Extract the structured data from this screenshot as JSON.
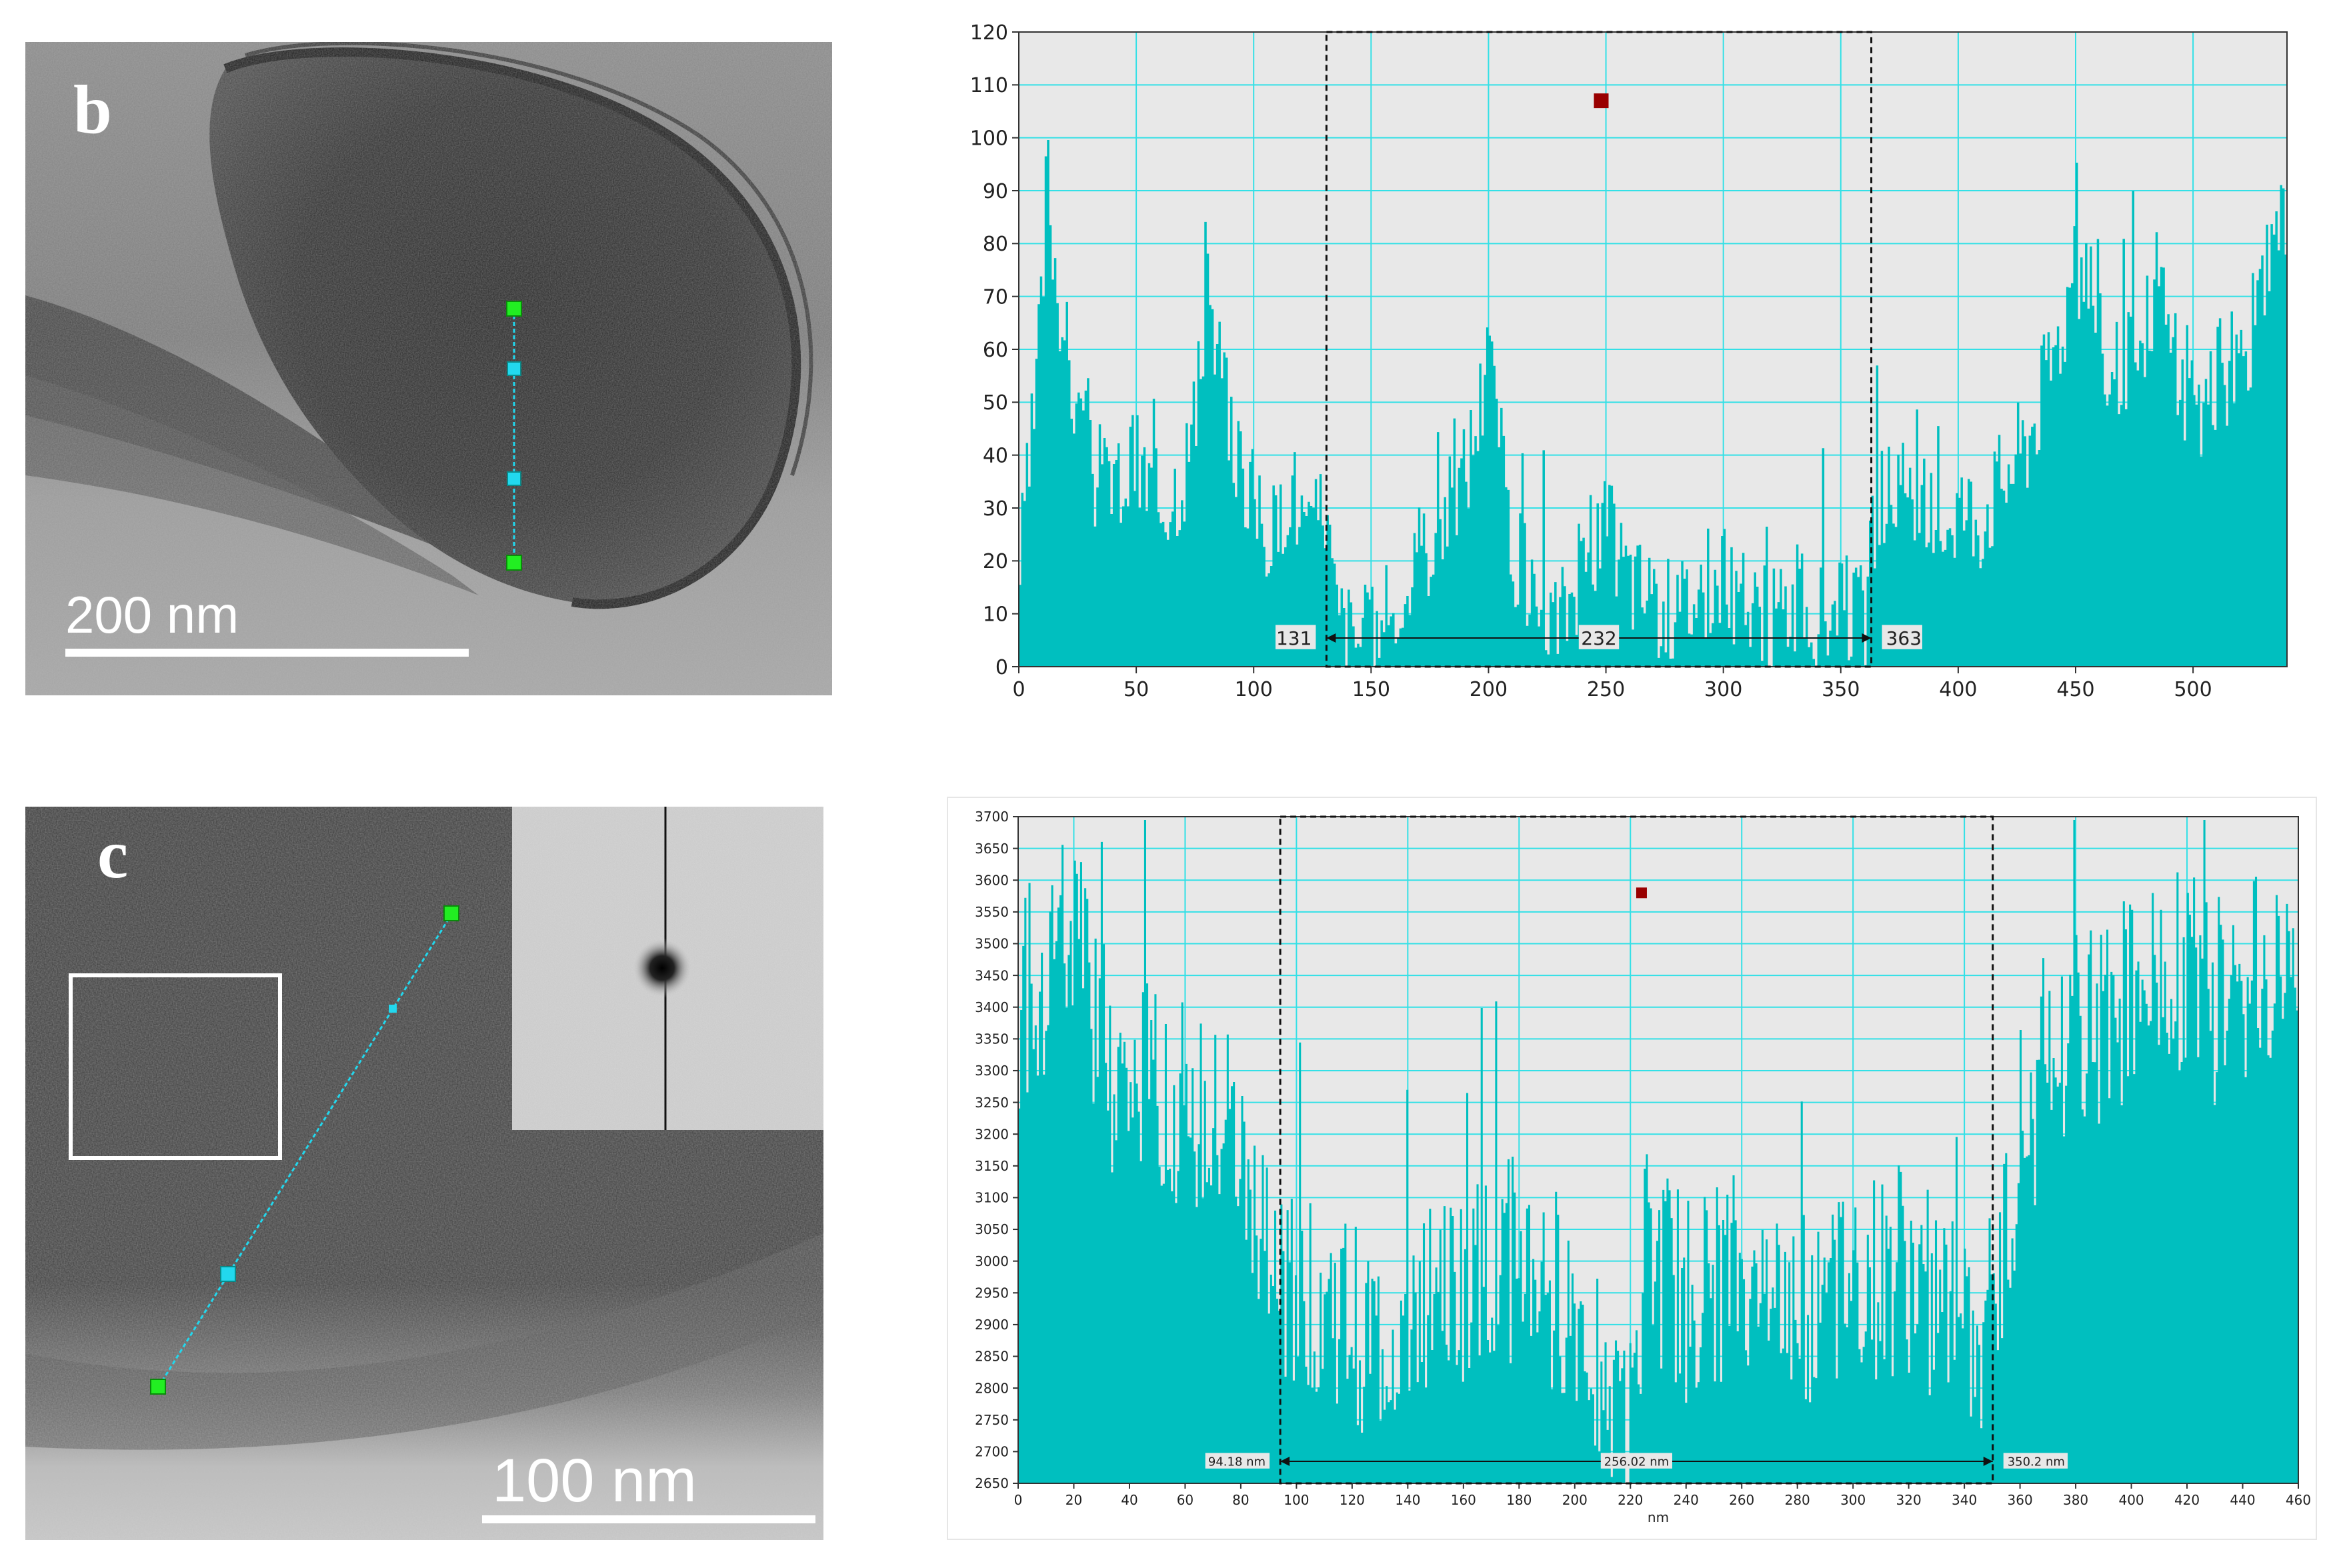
{
  "panels": {
    "b": {
      "letter": "b",
      "scale_label": "200 nm"
    },
    "c": {
      "letter": "c",
      "scale_label": "100 nm"
    }
  },
  "colors": {
    "fill": "#00bfbf",
    "grid": "#33e0e6",
    "bg": "#e8e8e8",
    "marker": "#990000",
    "node_end": "#22ee22",
    "node_mid": "#22d8ee"
  },
  "chart_data": [
    {
      "type": "area",
      "xlim": [
        0,
        540
      ],
      "ylim": [
        0,
        120
      ],
      "xticks": [
        0,
        50,
        100,
        150,
        200,
        250,
        300,
        350,
        400,
        450,
        500
      ],
      "yticks": [
        0,
        10,
        20,
        30,
        40,
        50,
        60,
        70,
        80,
        90,
        100,
        110,
        120
      ],
      "selection": {
        "start": 131,
        "end": 363,
        "start_label": "131",
        "width_label": "232",
        "end_label": "363"
      },
      "marker": {
        "x": 248,
        "y": 107
      },
      "series": [
        {
          "x": [
            0,
            5,
            10,
            12,
            15,
            20,
            25,
            30,
            40,
            50,
            60,
            70,
            78,
            80,
            82,
            85,
            90,
            95,
            100,
            105,
            110,
            115,
            120,
            125,
            130,
            135,
            140,
            150,
            160,
            170,
            180,
            190,
            195,
            200,
            205,
            210,
            220,
            230,
            240,
            250,
            260,
            270,
            280,
            290,
            300,
            310,
            320,
            330,
            340,
            350,
            360,
            365,
            370,
            380,
            390,
            400,
            410,
            420,
            430,
            440,
            450,
            455,
            460,
            470,
            480,
            485,
            490,
            500,
            510,
            520,
            530,
            538
          ],
          "values": [
            18,
            40,
            70,
            97,
            80,
            62,
            48,
            38,
            35,
            40,
            32,
            38,
            55,
            91,
            62,
            58,
            45,
            40,
            32,
            28,
            25,
            38,
            30,
            22,
            35,
            12,
            8,
            6,
            12,
            20,
            30,
            38,
            48,
            60,
            42,
            25,
            12,
            10,
            20,
            28,
            18,
            14,
            12,
            16,
            18,
            12,
            10,
            14,
            10,
            12,
            10,
            30,
            35,
            30,
            28,
            32,
            30,
            38,
            45,
            60,
            75,
            80,
            62,
            55,
            65,
            78,
            62,
            48,
            55,
            60,
            70,
            85
          ]
        }
      ]
    },
    {
      "type": "area",
      "xlim": [
        0,
        460
      ],
      "ylim": [
        2650,
        3700
      ],
      "xlabel": "nm",
      "xticks": [
        0,
        20,
        40,
        60,
        80,
        100,
        120,
        140,
        160,
        180,
        200,
        220,
        240,
        260,
        280,
        300,
        320,
        340,
        360,
        380,
        400,
        420,
        440,
        460
      ],
      "yticks": [
        2650,
        2700,
        2750,
        2800,
        2850,
        2900,
        2950,
        3000,
        3050,
        3100,
        3150,
        3200,
        3250,
        3300,
        3350,
        3400,
        3450,
        3500,
        3550,
        3600,
        3650,
        3700
      ],
      "selection": {
        "start": 94.18,
        "end": 350.2,
        "start_label": "94.18 nm",
        "width_label": "256.02 nm",
        "end_label": "350.2 nm"
      },
      "marker": {
        "x": 224,
        "y": 3580
      },
      "series": [
        {
          "x": [
            0,
            10,
            20,
            30,
            40,
            50,
            60,
            70,
            75,
            80,
            85,
            90,
            95,
            100,
            110,
            120,
            130,
            140,
            150,
            160,
            170,
            180,
            190,
            200,
            210,
            215,
            220,
            225,
            230,
            240,
            250,
            260,
            270,
            280,
            290,
            300,
            310,
            320,
            330,
            340,
            345,
            350,
            360,
            370,
            380,
            390,
            400,
            410,
            420,
            430,
            440,
            450,
            460
          ],
          "values": [
            3420,
            3480,
            3520,
            3360,
            3260,
            3310,
            3260,
            3200,
            3260,
            3150,
            3050,
            3000,
            2960,
            2980,
            2960,
            2920,
            2880,
            2920,
            2960,
            2980,
            3000,
            3030,
            2980,
            2940,
            2870,
            2800,
            2760,
            2980,
            3000,
            2960,
            2970,
            2990,
            2940,
            2950,
            2960,
            3000,
            2980,
            2990,
            2960,
            2900,
            2880,
            2900,
            3220,
            3280,
            3340,
            3400,
            3440,
            3460,
            3480,
            3420,
            3460,
            3480,
            3520
          ]
        }
      ]
    }
  ]
}
